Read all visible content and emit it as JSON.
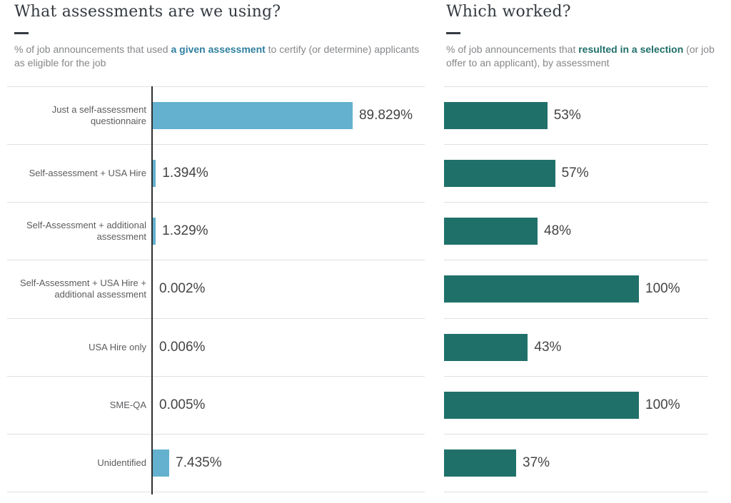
{
  "colors": {
    "background": "#ffffff",
    "title": "#343a40",
    "subtitle": "#85878a",
    "category_label": "#5b5c5f",
    "value_label": "#444346",
    "gridline": "#e0e0e0",
    "axis_line": "#2f2f2f",
    "left_bar": "#63b1ce",
    "right_bar": "#20706a",
    "left_highlight": "#2f7f9f",
    "right_highlight": "#1f6f68"
  },
  "chart_data": [
    {
      "type": "bar",
      "orientation": "horizontal",
      "title": "What assessments are we using?",
      "subtitle": {
        "prefix": "% of job announcements that used ",
        "highlight": "a given assessment",
        "suffix": " to certify (or determine) applicants as eligible for the job"
      },
      "highlight_color": "#2f7f9f",
      "bar_color": "#63b1ce",
      "categories": [
        "Just a self-assessment questionnaire",
        "Self-assessment + USA Hire",
        "Self-Assessment + additional assessment",
        "Self-Assessment + USA Hire + additional assessment",
        "USA Hire only",
        "SME-QA",
        "Unidentified"
      ],
      "values": [
        89.829,
        1.394,
        1.329,
        0.002,
        0.006,
        0.005,
        7.435
      ],
      "value_labels": [
        "89.829%",
        "1.394%",
        "1.329%",
        "0.002%",
        "0.006%",
        "0.005%",
        "7.435%"
      ],
      "xlim": [
        0,
        100
      ],
      "grid": "horizontal-lines",
      "axis_line": true,
      "show_category_labels": true,
      "legend": "none"
    },
    {
      "type": "bar",
      "orientation": "horizontal",
      "title": "Which worked?",
      "subtitle": {
        "prefix": "% of job announcements that ",
        "highlight": "resulted in a selection",
        "suffix": " (or job offer to an applicant), by assessment"
      },
      "highlight_color": "#1f6f68",
      "bar_color": "#20706a",
      "values": [
        53,
        57,
        48,
        100,
        43,
        100,
        37
      ],
      "value_labels": [
        "53%",
        "57%",
        "48%",
        "100%",
        "43%",
        "100%",
        "37%"
      ],
      "xlim": [
        0,
        100
      ],
      "grid": "horizontal-lines",
      "axis_line": false,
      "show_category_labels": false,
      "legend": "none"
    }
  ]
}
